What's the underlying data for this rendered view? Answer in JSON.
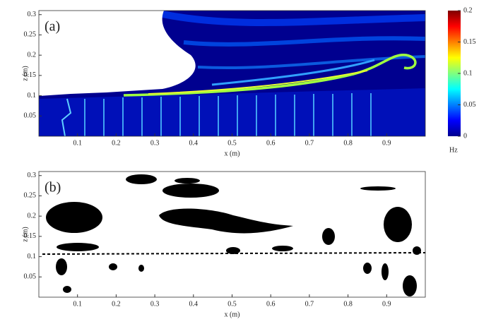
{
  "chart_data": [
    {
      "type": "image",
      "panel_label": "(a)",
      "xlabel": "x (m)",
      "ylabel": "z (m)",
      "xlim": [
        0,
        1
      ],
      "ylim": [
        0,
        0.31
      ],
      "xticks": [
        0.1,
        0.2,
        0.3,
        0.4,
        0.5,
        0.6,
        0.7,
        0.8,
        0.9
      ],
      "yticks": [
        0.05,
        0.1,
        0.15,
        0.2,
        0.25,
        0.3
      ],
      "colorbar": {
        "clim": [
          0,
          0.2
        ],
        "ticks": [
          0,
          0.05,
          0.1,
          0.15,
          0.2
        ],
        "label": "Hz"
      }
    },
    {
      "type": "image",
      "panel_label": "(b)",
      "xlabel": "x (m)",
      "ylabel": "z (m)",
      "xlim": [
        0,
        1
      ],
      "ylim": [
        0,
        0.31
      ],
      "xticks": [
        0.1,
        0.2,
        0.3,
        0.4,
        0.5,
        0.6,
        0.7,
        0.8,
        0.9
      ],
      "yticks": [
        0.05,
        0.1,
        0.15,
        0.2,
        0.25,
        0.3
      ]
    }
  ]
}
